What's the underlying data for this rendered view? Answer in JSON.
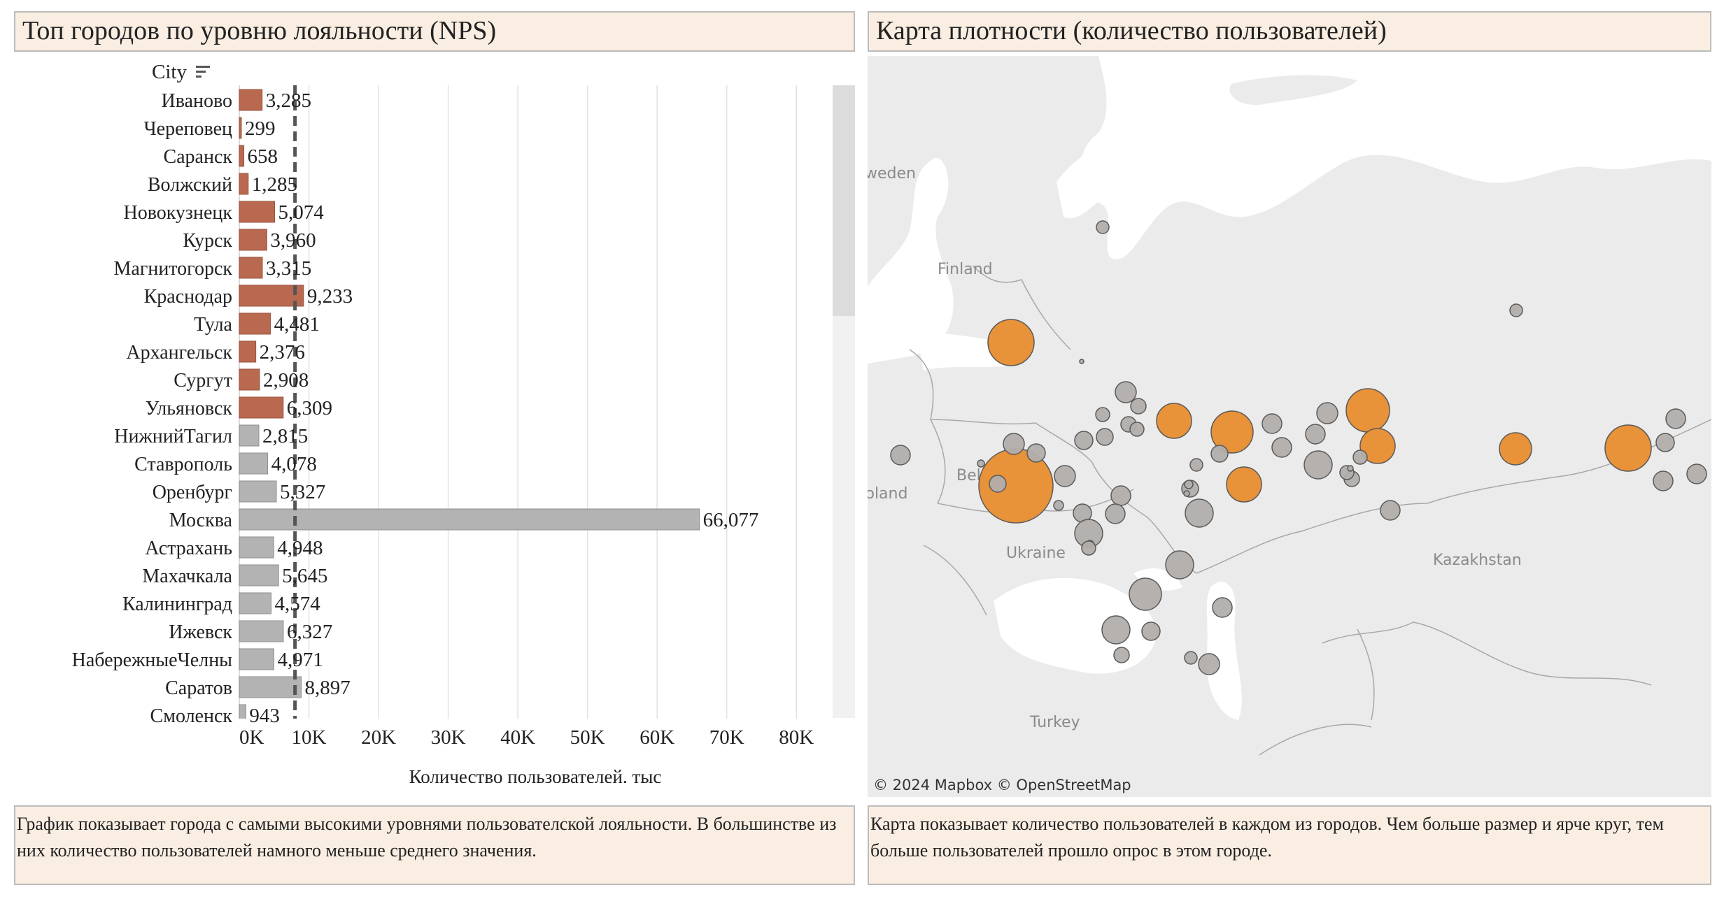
{
  "left_panel": {
    "title": "Топ городов по уровню лояльности (NPS)",
    "description": "График показывает города с самыми высокими уровнями пользователской лояльности. В большинстве из них количество пользователей намного меньше среднего значения."
  },
  "right_panel": {
    "title": "Карта плотности (количество пользователей)",
    "description": "Карта показывает количество пользователей в каждом из городов. Чем больше размер и ярче круг, тем больше пользователей прошло опрос в этом городе.",
    "map_labels": [
      "Sweden",
      "Finland",
      "Belarus",
      "Poland",
      "Ukraine",
      "Kazakhstan",
      "Turkey"
    ],
    "map_credit": "© 2024 Mapbox  © OpenStreetMap",
    "colors": {
      "highlight": "#e8923a",
      "normal": "#b2aeab",
      "land": "#ebebeb",
      "water": "#ffffff"
    }
  },
  "chart_data": {
    "type": "bar",
    "orientation": "horizontal",
    "title": "Топ городов по уровню лояльности (NPS)",
    "category_header": "City",
    "xlabel": "Количество пользователей, тыс",
    "xlim": [
      0,
      85000
    ],
    "xticks": [
      0,
      10000,
      20000,
      30000,
      40000,
      50000,
      60000,
      70000,
      80000
    ],
    "xtick_labels": [
      "0K",
      "10K",
      "20K",
      "30K",
      "40K",
      "50K",
      "60K",
      "70K",
      "80K"
    ],
    "reference_line": 8000,
    "grid": true,
    "colors": {
      "highlight": "#b8694f",
      "normal": "#b3b3b3"
    },
    "categories": [
      "Иваново",
      "Череповец",
      "Саранск",
      "Волжский",
      "Новокузнецк",
      "Курск",
      "Магнитогорск",
      "Краснодар",
      "Тула",
      "Архангельск",
      "Сургут",
      "Ульяновск",
      "НижнийТагил",
      "Ставрополь",
      "Оренбург",
      "Москва",
      "Астрахань",
      "Махачкала",
      "Калининград",
      "Ижевск",
      "НабережныеЧелны",
      "Саратов",
      "Смоленск"
    ],
    "values": [
      3285,
      299,
      658,
      1285,
      5074,
      3960,
      3315,
      9233,
      4481,
      2376,
      2908,
      6309,
      2815,
      4078,
      5327,
      66077,
      4948,
      5645,
      4574,
      6327,
      4971,
      8897,
      943
    ],
    "value_labels": [
      "3,285",
      "299",
      "658",
      "1,285",
      "5,074",
      "3,960",
      "3,315",
      "9,233",
      "4,481",
      "2,376",
      "2,908",
      "6,309",
      "2,815",
      "4,078",
      "5,327",
      "66,077",
      "4,948",
      "5,645",
      "4,574",
      "6,327",
      "4,971",
      "8,897",
      "943"
    ],
    "highlighted": [
      true,
      true,
      true,
      true,
      true,
      true,
      true,
      true,
      true,
      true,
      true,
      true,
      false,
      false,
      false,
      false,
      false,
      false,
      false,
      false,
      false,
      false,
      false
    ]
  }
}
